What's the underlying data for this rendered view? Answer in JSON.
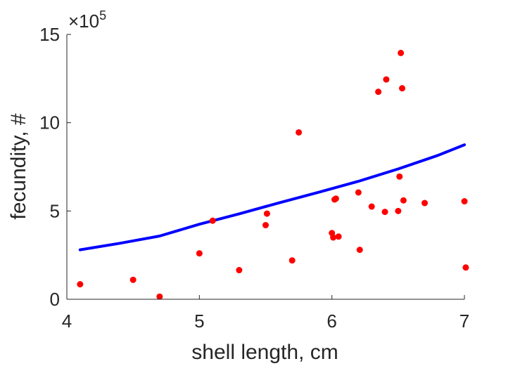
{
  "chart_data": {
    "type": "scatter",
    "xlabel": "shell length, cm",
    "ylabel": "fecundity, #",
    "xlim": [
      4,
      7
    ],
    "ylim": [
      0,
      1500000
    ],
    "x_ticks": [
      4,
      5,
      6,
      7
    ],
    "x_tick_labels": [
      "4",
      "5",
      "6",
      "7"
    ],
    "y_ticks": [
      0,
      500000,
      1000000,
      1500000
    ],
    "y_tick_labels": [
      "0",
      "5",
      "10",
      "15"
    ],
    "y_exponent": {
      "prefix": "×10",
      "power": "5"
    },
    "grid": false,
    "colors": {
      "points": "#ff0000",
      "fit": "#0000ff",
      "axis": "#262626"
    },
    "series": [
      {
        "kind": "points",
        "x": [
          4.1,
          4.5,
          4.7,
          5.0,
          5.1,
          5.3,
          5.5,
          5.51,
          5.7,
          5.75,
          6.0,
          6.01,
          6.02,
          6.03,
          6.05,
          6.2,
          6.21,
          6.3,
          6.35,
          6.4,
          6.41,
          6.5,
          6.51,
          6.52,
          6.53,
          6.54,
          6.7,
          7.0,
          7.01
        ],
        "y": [
          85000,
          110000,
          15000,
          260000,
          445000,
          165000,
          420000,
          485000,
          220000,
          945000,
          375000,
          350000,
          565000,
          570000,
          355000,
          605000,
          280000,
          525000,
          1175000,
          495000,
          1245000,
          500000,
          695000,
          1395000,
          1195000,
          560000,
          545000,
          555000,
          180000
        ]
      },
      {
        "kind": "fit",
        "x": [
          4.1,
          4.4,
          4.7,
          5.0,
          5.3,
          5.6,
          5.9,
          6.2,
          6.5,
          6.8,
          7.0
        ],
        "y": [
          280000,
          317000,
          358000,
          425000,
          484000,
          546000,
          606000,
          668000,
          738000,
          815000,
          875000
        ]
      }
    ]
  }
}
